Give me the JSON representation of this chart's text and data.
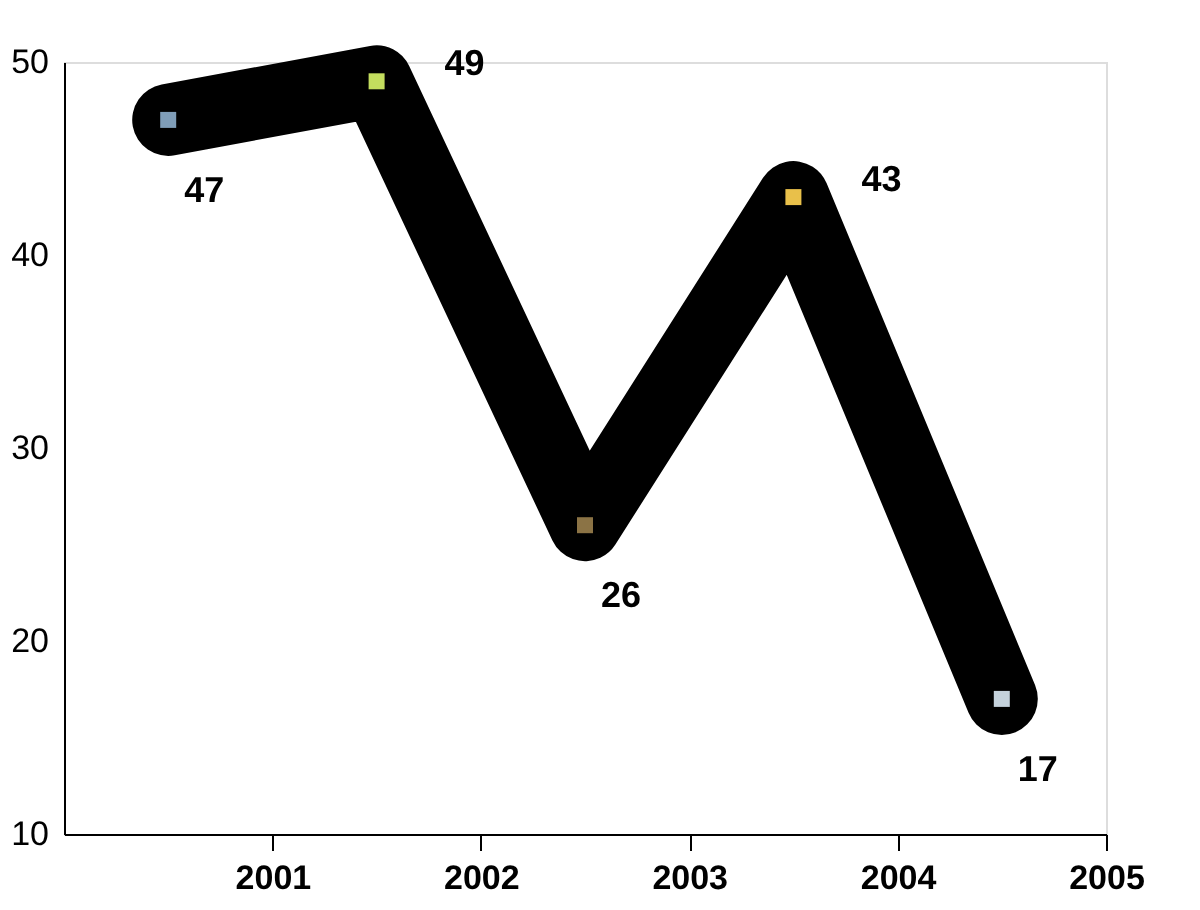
{
  "chart_data": {
    "type": "line",
    "x": [
      2000.5,
      2001.5,
      2002.5,
      2003.5,
      2004.5
    ],
    "values": [
      47,
      49,
      26,
      43,
      17
    ],
    "color": "#000000",
    "colors": [
      "#7f9db8",
      "#c3dd5e",
      "#8b7345",
      "#e9c04a",
      "#c5d2dc"
    ],
    "xlim": [
      2000,
      2005
    ],
    "xticks": [
      2001,
      2002,
      2003,
      2004,
      2005
    ],
    "ylim": [
      10,
      50
    ],
    "yticks": [
      10,
      20,
      30,
      40,
      50
    ],
    "data_labels": true,
    "marker": "square",
    "line_style": "solid",
    "grid": false
  }
}
